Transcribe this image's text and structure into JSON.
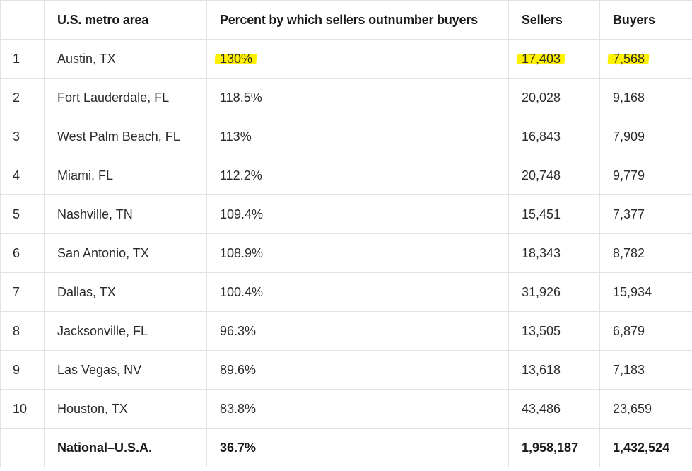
{
  "table": {
    "headers": [
      "",
      "U.S. metro area",
      "Percent by which sellers outnumber buyers",
      "Sellers",
      "Buyers"
    ],
    "rows": [
      {
        "rank": "1",
        "metro": "Austin, TX",
        "percent": "130%",
        "sellers": "17,403",
        "buyers": "7,568",
        "highlighted": true
      },
      {
        "rank": "2",
        "metro": "Fort Lauderdale, FL",
        "percent": "118.5%",
        "sellers": "20,028",
        "buyers": "9,168"
      },
      {
        "rank": "3",
        "metro": "West Palm Beach, FL",
        "percent": "113%",
        "sellers": "16,843",
        "buyers": "7,909"
      },
      {
        "rank": "4",
        "metro": "Miami, FL",
        "percent": "112.2%",
        "sellers": "20,748",
        "buyers": "9,779"
      },
      {
        "rank": "5",
        "metro": "Nashville, TN",
        "percent": "109.4%",
        "sellers": "15,451",
        "buyers": "7,377"
      },
      {
        "rank": "6",
        "metro": "San Antonio, TX",
        "percent": "108.9%",
        "sellers": "18,343",
        "buyers": "8,782"
      },
      {
        "rank": "7",
        "metro": "Dallas, TX",
        "percent": "100.4%",
        "sellers": "31,926",
        "buyers": "15,934"
      },
      {
        "rank": "8",
        "metro": "Jacksonville, FL",
        "percent": "96.3%",
        "sellers": "13,505",
        "buyers": "6,879"
      },
      {
        "rank": "9",
        "metro": "Las Vegas, NV",
        "percent": "89.6%",
        "sellers": "13,618",
        "buyers": "7,183"
      },
      {
        "rank": "10",
        "metro": "Houston, TX",
        "percent": "83.8%",
        "sellers": "43,486",
        "buyers": "23,659"
      }
    ],
    "total": {
      "rank": "",
      "metro": "National–U.S.A.",
      "percent": "36.7%",
      "sellers": "1,958,187",
      "buyers": "1,432,524"
    }
  },
  "colors": {
    "highlight": "#fff200",
    "border": "#e2e2e2",
    "text": "#2b2b2b"
  }
}
